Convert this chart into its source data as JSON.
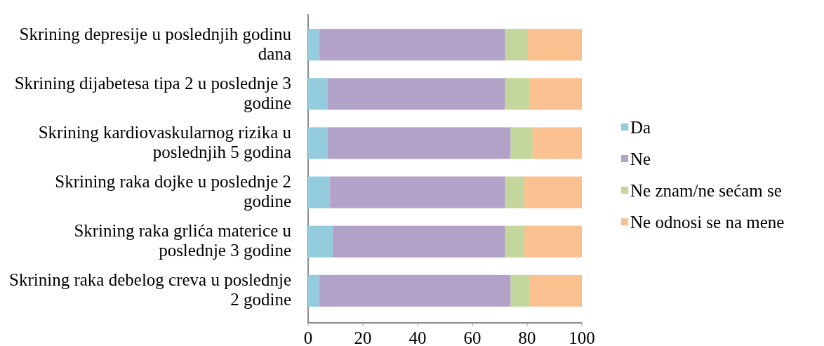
{
  "chart_data": {
    "type": "bar",
    "orientation": "horizontal",
    "stacked": true,
    "categories": [
      "Skrining depresije u poslednjih godinu dana",
      "Skrining dijabetesa tipa 2 u poslednje 3 godine",
      "Skrining kardiovaskularnog rizika u poslednjih 5 godina",
      "Skrining raka dojke u poslednje 2 godine",
      "Skrining raka grlića materice u poslednje 3 godine",
      "Skrining raka debelog creva u poslednje 2 godine"
    ],
    "series": [
      {
        "name": "Da",
        "color": "#93cddd",
        "values": [
          4,
          7,
          7,
          8,
          9,
          4
        ]
      },
      {
        "name": "Ne",
        "color": "#b3a2c7",
        "values": [
          68,
          65,
          67,
          64,
          63,
          70
        ]
      },
      {
        "name": "Ne znam/ne sećam se",
        "color": "#c3d69b",
        "values": [
          8,
          9,
          8,
          7,
          7,
          7
        ]
      },
      {
        "name": "Ne odnosi se na mene",
        "color": "#fac090",
        "values": [
          20,
          19,
          18,
          21,
          21,
          19
        ]
      }
    ],
    "xlim": [
      0,
      100
    ],
    "xticks": [
      0,
      20,
      40,
      60,
      80,
      100
    ],
    "grid": false,
    "legend": "right"
  }
}
